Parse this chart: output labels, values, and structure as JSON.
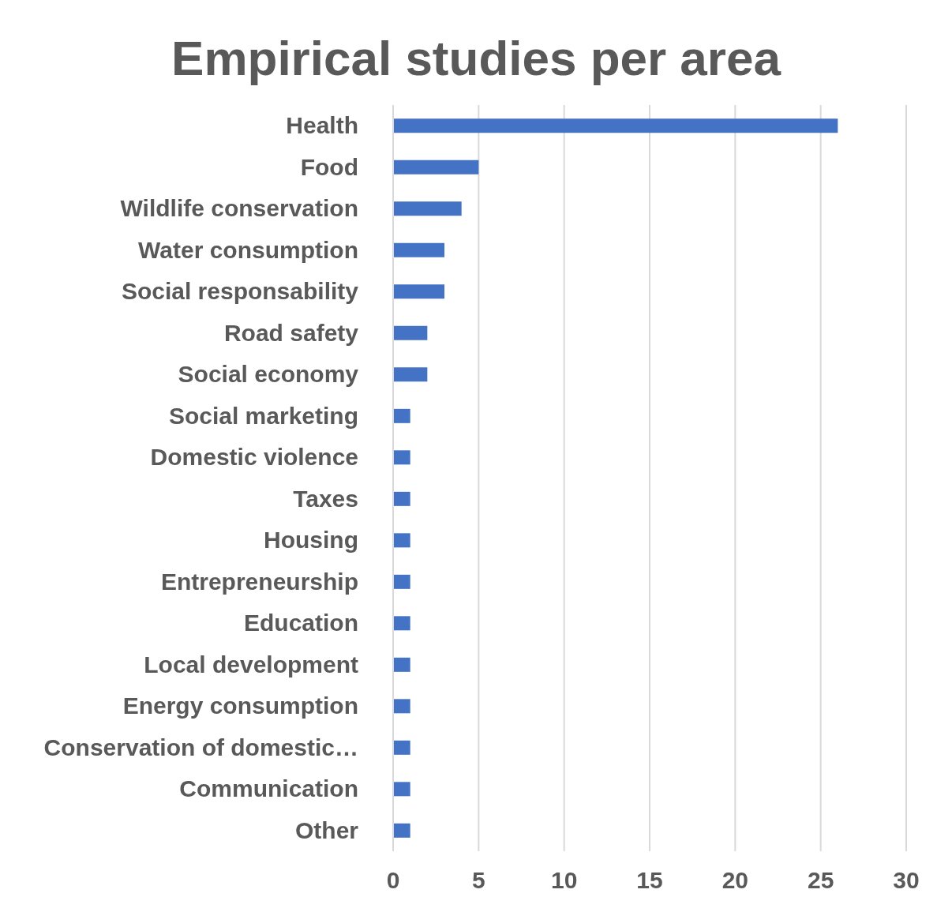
{
  "chart_data": {
    "type": "bar",
    "orientation": "horizontal",
    "title": "Empirical studies per area",
    "categories": [
      "Health",
      "Food",
      "Wildlife conservation",
      "Water consumption",
      "Social responsability",
      "Road safety",
      "Social economy",
      "Social marketing",
      "Domestic violence",
      "Taxes",
      "Housing",
      "Entrepreneurship",
      "Education",
      "Local development",
      "Energy consumption",
      "Conservation of domestic…",
      "Communication",
      "Other"
    ],
    "values": [
      26,
      5,
      4,
      3,
      3,
      2,
      2,
      1,
      1,
      1,
      1,
      1,
      1,
      1,
      1,
      1,
      1,
      1
    ],
    "color": "#4472c4",
    "xlim": [
      0,
      30
    ],
    "xticks": [
      0,
      5,
      10,
      15,
      20,
      25,
      30
    ],
    "grid": "x",
    "legend": false
  }
}
